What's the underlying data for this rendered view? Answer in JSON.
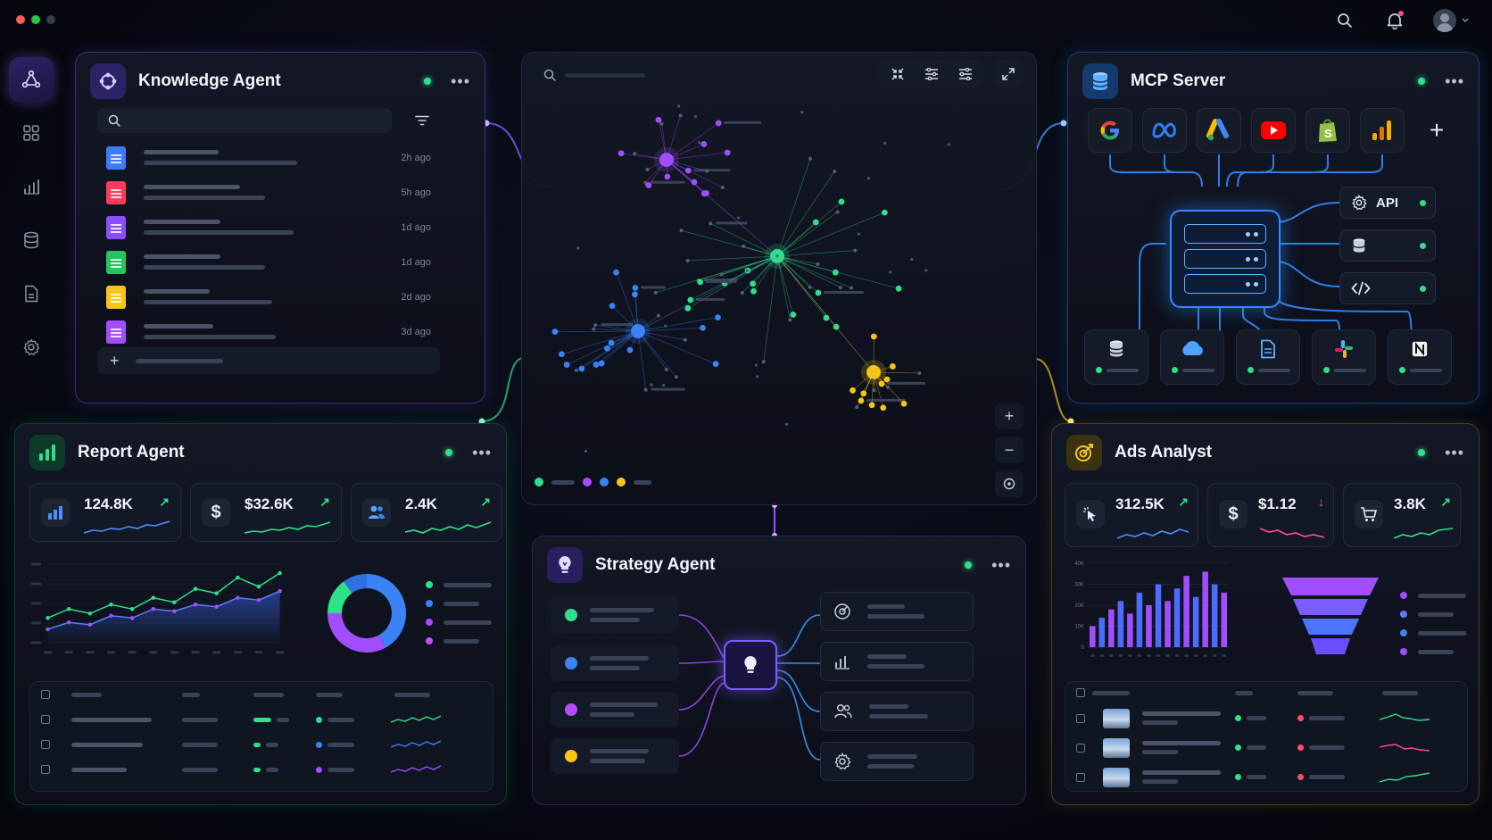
{
  "window": {
    "lights": [
      "#ff5f57",
      "#28c840",
      "#3a3f4b"
    ]
  },
  "topbar": {
    "icons": [
      "search-icon",
      "bell-icon",
      "avatar"
    ]
  },
  "sidebar": {
    "items": [
      {
        "name": "agents",
        "icon": "network-triangle-icon",
        "active": true
      },
      {
        "name": "dashboard",
        "icon": "grid-icon"
      },
      {
        "name": "analytics",
        "icon": "bar-chart-icon"
      },
      {
        "name": "database",
        "icon": "database-icon"
      },
      {
        "name": "documents",
        "icon": "file-icon"
      },
      {
        "name": "settings",
        "icon": "gear-icon"
      }
    ]
  },
  "knowledge_agent": {
    "title": "Knowledge Agent",
    "files": [
      {
        "type": "doc",
        "color": "#3b7bff",
        "time": "2h ago"
      },
      {
        "type": "pdf",
        "color": "#ff3b5c",
        "time": "5h ago"
      },
      {
        "type": "doc",
        "color": "#8a4dff",
        "time": "1d ago"
      },
      {
        "type": "sheet",
        "color": "#22c55e",
        "time": "1d ago"
      },
      {
        "type": "note",
        "color": "#f5c518",
        "time": "2d ago"
      },
      {
        "type": "doc",
        "color": "#a24dff",
        "time": "3d ago"
      }
    ]
  },
  "graph": {
    "legend_colors": [
      "#2de08a",
      "#a24dff",
      "#3b82f6",
      "#f5c518"
    ],
    "tools": [
      "collapse-icon",
      "sliders-icon",
      "sliders-alt-icon",
      "expand-icon"
    ],
    "zoom": [
      "+",
      "−"
    ]
  },
  "mcp_server": {
    "title": "MCP Server",
    "integrations": [
      "google",
      "meta",
      "google-ads",
      "youtube",
      "shopify",
      "analytics",
      "add"
    ],
    "outputs": [
      {
        "label": "API",
        "icon": "gear-icon"
      },
      {
        "label": "",
        "icon": "database-icon"
      },
      {
        "label": "",
        "icon": "code-icon"
      }
    ],
    "destinations": [
      "database-icon",
      "cloud-icon",
      "document-icon",
      "slack-icon",
      "notion-icon"
    ]
  },
  "report_agent": {
    "title": "Report Agent",
    "kpis": [
      {
        "value": "124.8K",
        "icon": "bar-chart-icon",
        "trend": "up"
      },
      {
        "value": "$32.6K",
        "icon": "dollar-icon",
        "trend": "up"
      },
      {
        "value": "2.4K",
        "icon": "users-icon",
        "trend": "up"
      }
    ],
    "donut": [
      {
        "color": "#3b82f6",
        "share": 0.42
      },
      {
        "color": "#a24dff",
        "share": 0.33
      },
      {
        "color": "#2de08a",
        "share": 0.15
      },
      {
        "color": "#2f6fe0",
        "share": 0.1
      }
    ],
    "legend_colors": [
      "#2de08a",
      "#3b82f6",
      "#a24dff",
      "#c04dff"
    ]
  },
  "strategy_agent": {
    "title": "Strategy Agent",
    "inputs": [
      "#2de08a",
      "#3b82f6",
      "#b04dff",
      "#f5c518"
    ],
    "outputs": [
      "target-icon",
      "bar-chart-icon",
      "users-icon",
      "gear-icon"
    ]
  },
  "ads_analyst": {
    "title": "Ads Analyst",
    "kpis": [
      {
        "value": "312.5K",
        "icon": "cursor-click-icon",
        "trend": "up"
      },
      {
        "value": "$1.12",
        "icon": "dollar-icon",
        "trend": "down"
      },
      {
        "value": "3.8K",
        "icon": "cart-icon",
        "trend": "up"
      }
    ],
    "chart_y_ticks": [
      "40K",
      "30K",
      "20K",
      "10K",
      "0"
    ],
    "legend_colors": [
      "#a24dff",
      "#5b7cff",
      "#3b82f6",
      "#a24dff"
    ]
  },
  "chart_data": [
    {
      "type": "line",
      "title": "",
      "series": [
        {
          "values": [
            22,
            30,
            26,
            34,
            30,
            40,
            36,
            48,
            44,
            58,
            50,
            62
          ]
        },
        {
          "values": [
            12,
            18,
            16,
            24,
            22,
            30,
            28,
            34,
            32,
            40,
            38,
            46
          ]
        }
      ],
      "ylim": [
        0,
        70
      ]
    },
    {
      "type": "bar",
      "title": "",
      "values": [
        10,
        14,
        18,
        22,
        16,
        26,
        20,
        30,
        22,
        28,
        34,
        24,
        36,
        30,
        26
      ],
      "ylim": [
        0,
        40
      ]
    }
  ]
}
